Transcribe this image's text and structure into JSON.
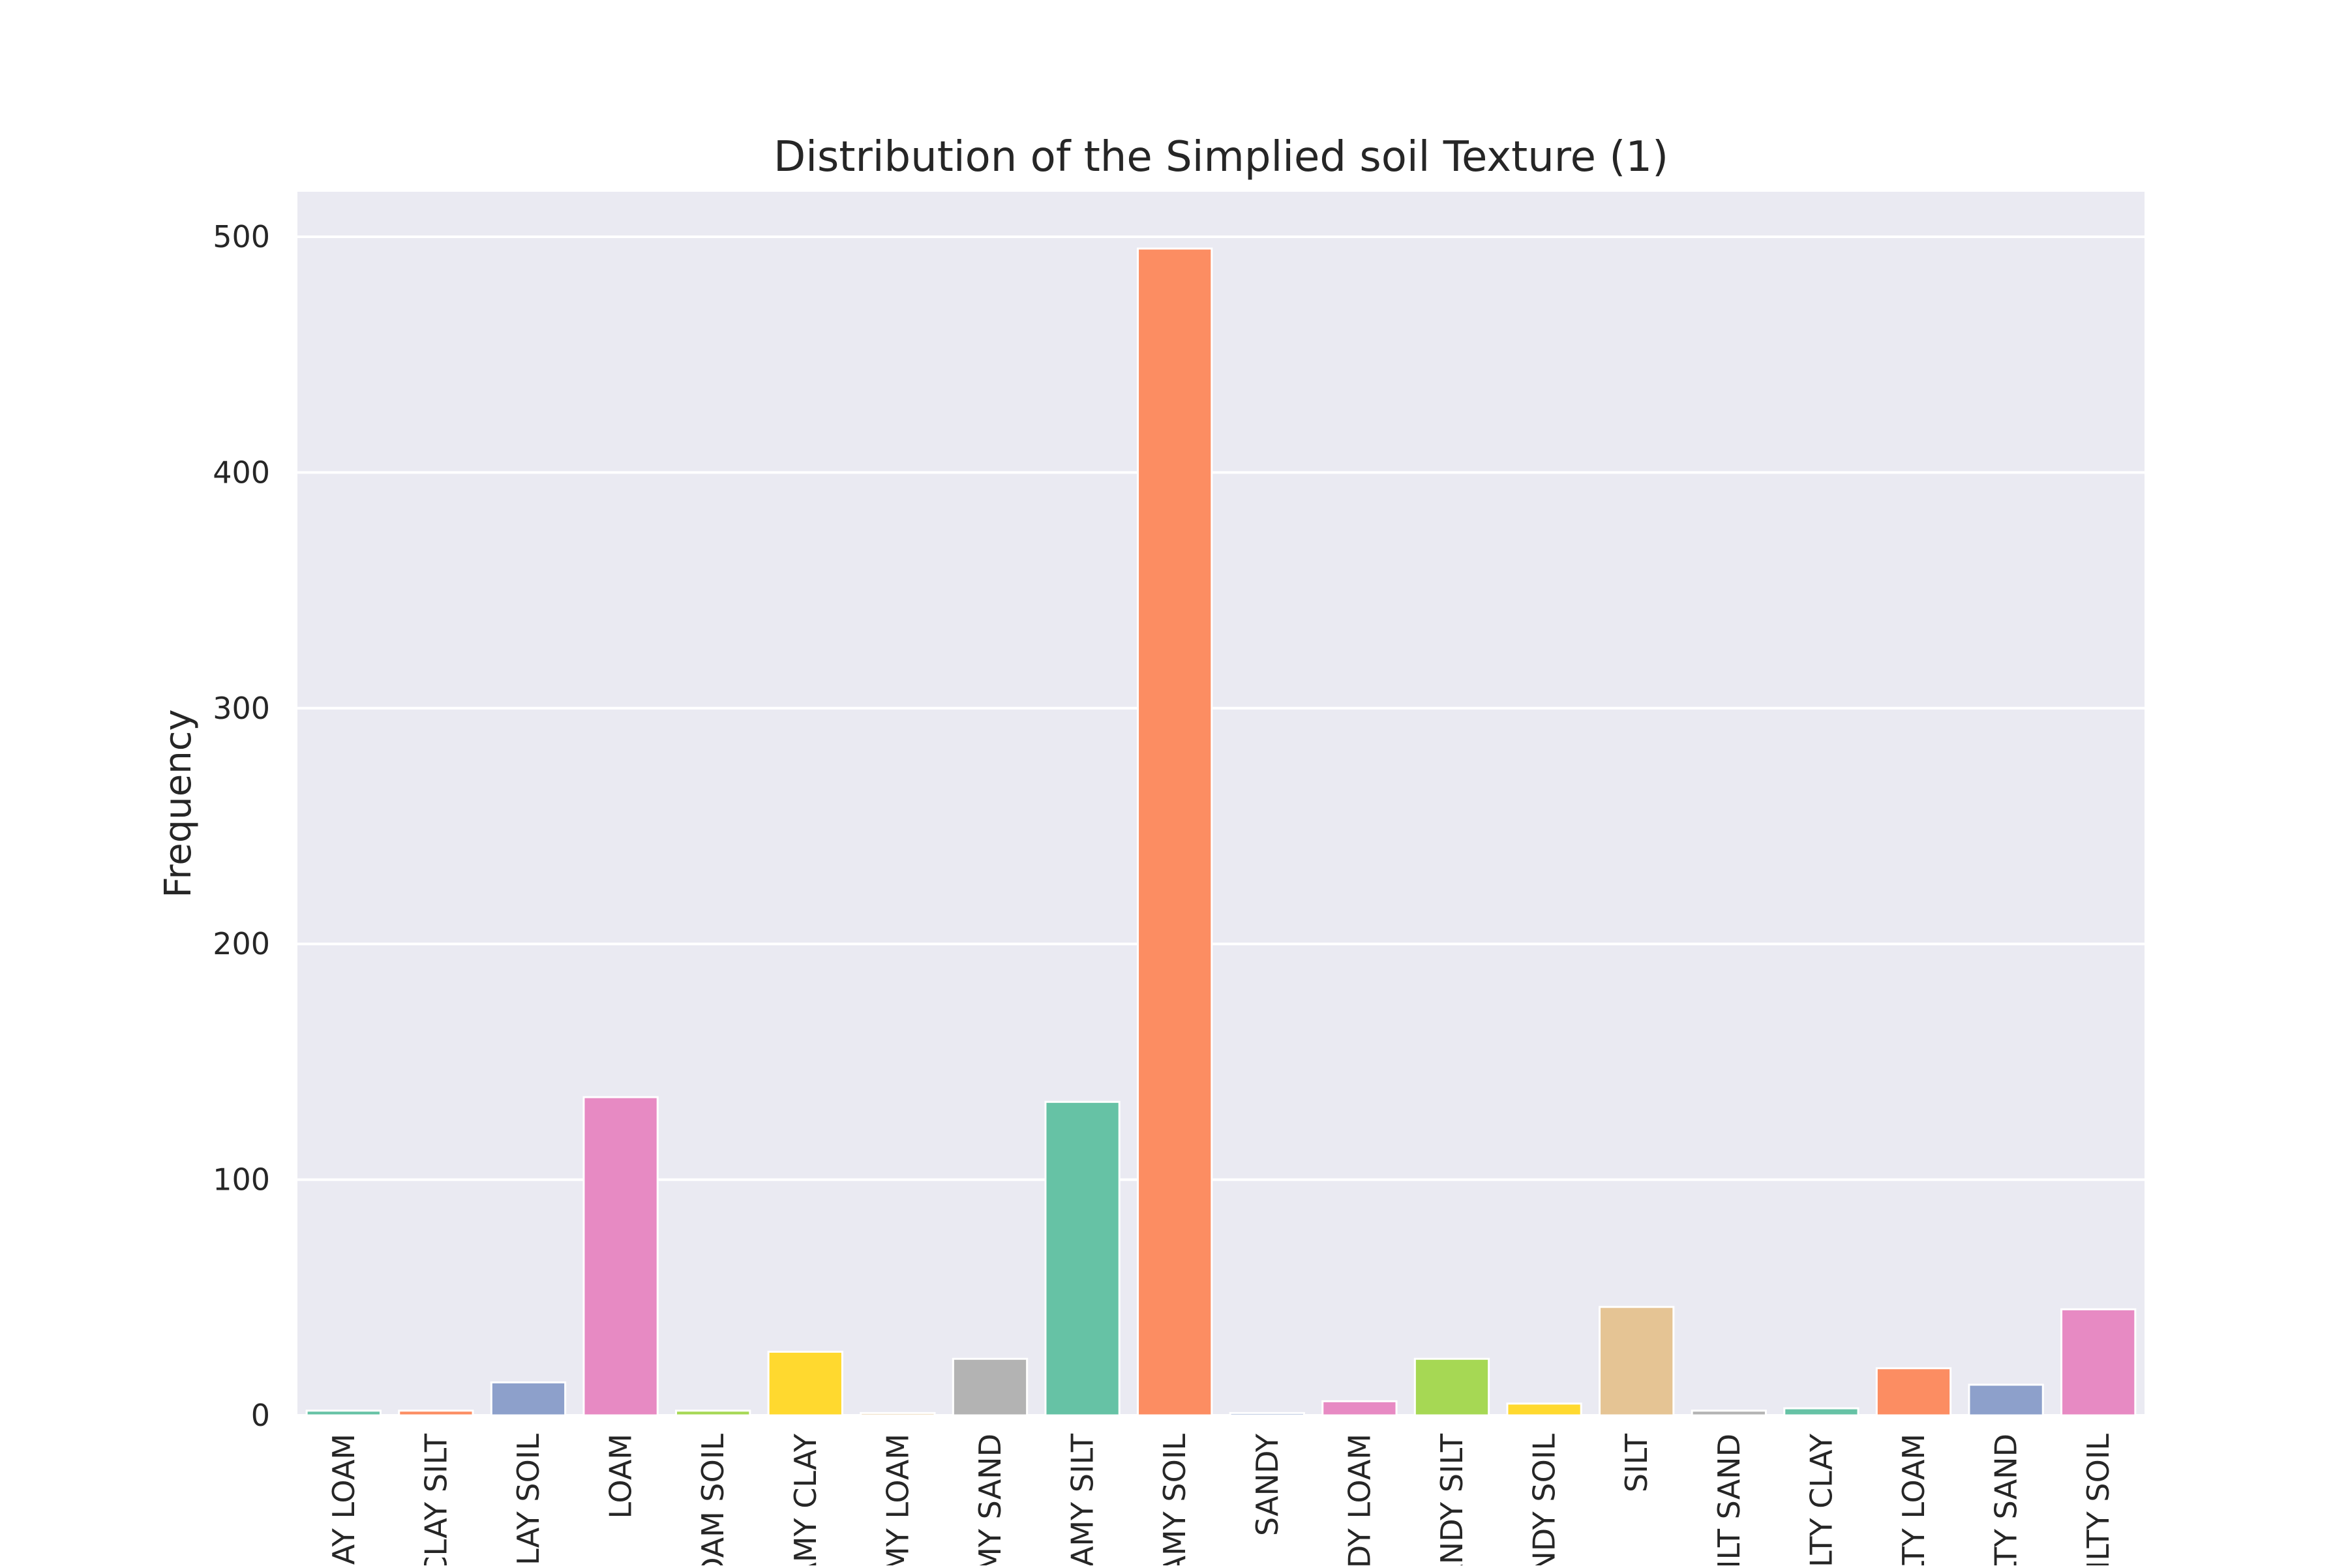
{
  "chart_data": {
    "type": "bar",
    "title": "Distribution of the Simplied soil Texture (1)",
    "xlabel": "",
    "ylabel": "Frequency",
    "ylim": [
      0,
      520
    ],
    "yticks": [
      0,
      100,
      200,
      300,
      400,
      500
    ],
    "grid": true,
    "categories": [
      "CLAY LOAM",
      "CLAY SILT",
      "CLAY SOIL",
      "LOAM",
      "LOAM SOIL",
      "LOAMY CLAY",
      "LOAMY LOAM",
      "LOAMY SAND",
      "LOAMY SILT",
      "LOAMY SOIL",
      "SANDY",
      "SANDY LOAM",
      "SANDY SILT",
      "SANDY SOIL",
      "SILT",
      "SILT SAND",
      "SILTY CLAY",
      "SILTY LOAM",
      "SILTY SAND",
      "SILTY SOIL"
    ],
    "values": [
      2,
      2,
      14,
      135,
      2,
      27,
      1,
      24,
      133,
      495,
      1,
      6,
      24,
      5,
      46,
      2,
      3,
      20,
      13,
      45
    ],
    "colors": [
      "#66c2a5",
      "#fc8d62",
      "#8da0cb",
      "#e78ac3",
      "#a6d854",
      "#ffd92f",
      "#e5c494",
      "#b3b3b3",
      "#66c2a5",
      "#fc8d62",
      "#8da0cb",
      "#e78ac3",
      "#a6d854",
      "#ffd92f",
      "#e5c494",
      "#b3b3b3",
      "#66c2a5",
      "#fc8d62",
      "#8da0cb",
      "#e78ac3"
    ],
    "background_color": "#eaeaf2",
    "grid_color": "#ffffff",
    "tick_label_rotation_deg": -90
  }
}
